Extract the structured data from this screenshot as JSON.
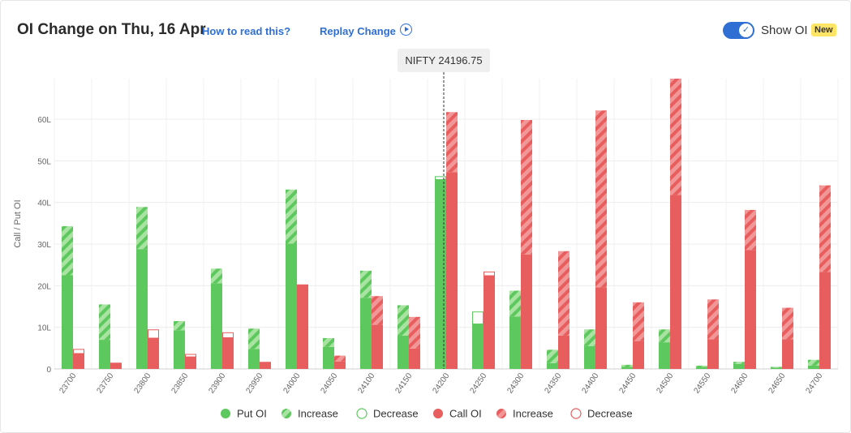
{
  "header": {
    "title": "OI Change on Thu, 16 Apr",
    "how_to_read": "How to read this?",
    "replay": "Replay Change",
    "show_oi": "Show OI",
    "new_badge": "New",
    "show_oi_enabled": true
  },
  "colors": {
    "put": "#5dc85d",
    "put_increase": "#a8e3a2",
    "call": "#e85d5d",
    "call_increase": "#f29797",
    "accent": "#2f6fd3",
    "badge": "#ffe566"
  },
  "chart_data": {
    "type": "bar",
    "xlabel": "",
    "ylabel": "Call / Put OI",
    "ylim": [
      0,
      70
    ],
    "yticks": [
      0,
      10,
      20,
      30,
      40,
      50,
      60
    ],
    "ytick_labels": [
      "0",
      "10L",
      "20L",
      "30L",
      "40L",
      "50L",
      "60L"
    ],
    "grid": true,
    "spot_label": "NIFTY 24196.75",
    "spot_value": 24196.75,
    "categories": [
      "23700",
      "23750",
      "23800",
      "23850",
      "23900",
      "23950",
      "24000",
      "24050",
      "24100",
      "24150",
      "24200",
      "24250",
      "24300",
      "24350",
      "24400",
      "24450",
      "24500",
      "24550",
      "24600",
      "24650",
      "24700"
    ],
    "series": [
      {
        "name": "Put OI",
        "values": [
          22.5,
          7.0,
          28.8,
          9.3,
          20.6,
          4.8,
          30.1,
          5.3,
          17.1,
          8.0,
          45.5,
          10.8,
          12.6,
          1.4,
          5.5,
          0.5,
          6.4,
          0.5,
          1.2,
          0.3,
          0.8
        ]
      },
      {
        "name": "Increase",
        "values": [
          11.8,
          8.5,
          10.1,
          2.2,
          3.5,
          4.9,
          13.0,
          2.1,
          6.5,
          7.3,
          0,
          0,
          6.2,
          3.2,
          4.0,
          0.5,
          3.1,
          0.3,
          0.5,
          0.2,
          1.4
        ]
      },
      {
        "name": "Decrease",
        "values": [
          0,
          0,
          0,
          0,
          0,
          0,
          0,
          0,
          0,
          0,
          0.7,
          2.9,
          0,
          0,
          0,
          0,
          0,
          0,
          0,
          0,
          0
        ]
      },
      {
        "name": "Call OI",
        "values": [
          3.7,
          1.5,
          7.4,
          2.9,
          7.5,
          1.7,
          20.3,
          1.8,
          10.6,
          4.9,
          47.3,
          22.4,
          27.5,
          8.0,
          19.6,
          6.7,
          41.8,
          7.1,
          28.6,
          7.1,
          23.3
        ]
      },
      {
        "name": "Increase",
        "values": [
          0,
          0,
          0,
          0,
          0,
          0,
          0,
          1.4,
          6.9,
          7.6,
          14.4,
          0,
          32.3,
          20.3,
          42.5,
          9.3,
          28.2,
          9.6,
          9.6,
          7.6,
          20.8
        ]
      },
      {
        "name": "Decrease",
        "values": [
          1.0,
          0,
          2.0,
          0.6,
          1.2,
          0,
          0,
          0,
          0,
          0,
          0,
          0.9,
          0,
          0,
          0,
          0,
          0,
          0,
          0,
          0,
          0
        ]
      }
    ],
    "legend": [
      "Put OI",
      "Increase",
      "Decrease",
      "Call OI",
      "Increase",
      "Decrease"
    ],
    "legend_position": "bottom"
  }
}
